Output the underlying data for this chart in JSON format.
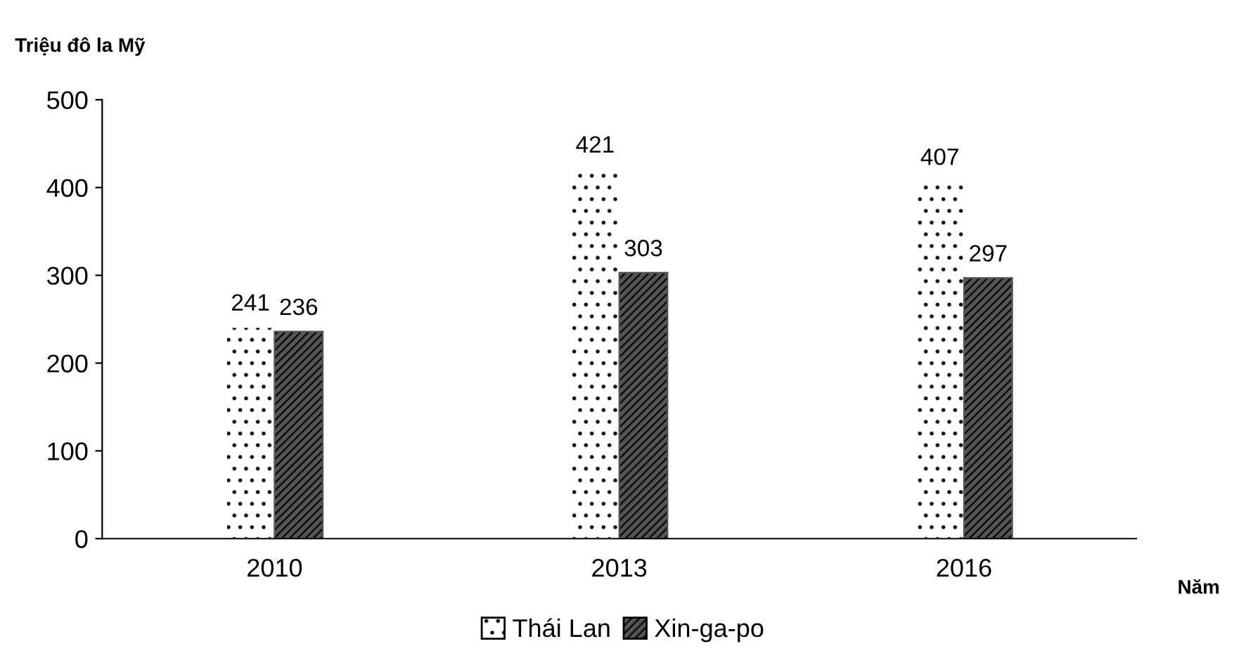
{
  "chart_data": {
    "type": "bar",
    "ylabel": "Triệu đô la Mỹ",
    "xlabel": "Năm",
    "categories": [
      "2010",
      "2013",
      "2016"
    ],
    "series": [
      {
        "name": "Thái Lan",
        "color": "#ffffff",
        "values": [
          241,
          421,
          407
        ]
      },
      {
        "name": "Xin-ga-po",
        "color": "#555555",
        "values": [
          236,
          303,
          297
        ]
      }
    ],
    "ylim": [
      0,
      500
    ],
    "yticks": [
      0,
      100,
      200,
      300,
      400,
      500
    ],
    "grid": false,
    "legend": "bottom",
    "data_labels": true
  }
}
